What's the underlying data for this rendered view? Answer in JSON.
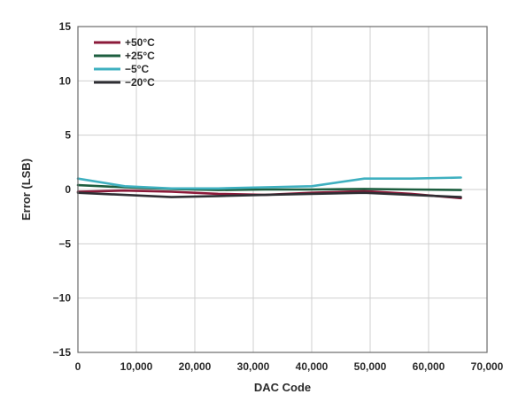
{
  "chart_data": {
    "type": "line",
    "xlabel": "DAC Code",
    "ylabel": "Error (LSB)",
    "xlim": [
      0,
      70000
    ],
    "ylim": [
      -15,
      15
    ],
    "xticks": [
      0,
      10000,
      20000,
      30000,
      40000,
      50000,
      60000,
      70000
    ],
    "xtick_labels": [
      "0",
      "10,000",
      "20,000",
      "30,000",
      "40,000",
      "50,000",
      "60,000",
      "70,000"
    ],
    "yticks": [
      15,
      10,
      5,
      0,
      -5,
      -10,
      -15
    ],
    "ytick_labels": [
      "15",
      "10",
      "5",
      "0",
      "−5",
      "−10",
      "−15"
    ],
    "grid": true,
    "legend_position": "top-left",
    "series": [
      {
        "name": "+50°C",
        "color": "#8b1a3a",
        "x": [
          0,
          8000,
          16000,
          24000,
          32000,
          40000,
          49000,
          57000,
          65535
        ],
        "y": [
          -0.2,
          -0.1,
          -0.2,
          -0.4,
          -0.5,
          -0.3,
          -0.15,
          -0.4,
          -0.8
        ]
      },
      {
        "name": "+25°C",
        "color": "#1d5e3f",
        "x": [
          0,
          8000,
          16000,
          24000,
          32000,
          40000,
          49000,
          57000,
          65535
        ],
        "y": [
          0.4,
          0.2,
          0.05,
          -0.05,
          0.0,
          0.0,
          0.05,
          0.0,
          -0.05
        ]
      },
      {
        "name": "−5°C",
        "color": "#3fb0c0",
        "x": [
          0,
          8000,
          16000,
          24000,
          32000,
          40000,
          49000,
          57000,
          65535
        ],
        "y": [
          1.0,
          0.3,
          0.1,
          0.1,
          0.2,
          0.3,
          1.0,
          1.0,
          1.1
        ]
      },
      {
        "name": "−20°C",
        "color": "#2e2e33",
        "x": [
          0,
          8000,
          16000,
          24000,
          32000,
          40000,
          49000,
          57000,
          65535
        ],
        "y": [
          -0.3,
          -0.5,
          -0.7,
          -0.6,
          -0.5,
          -0.4,
          -0.3,
          -0.5,
          -0.7
        ]
      }
    ]
  }
}
